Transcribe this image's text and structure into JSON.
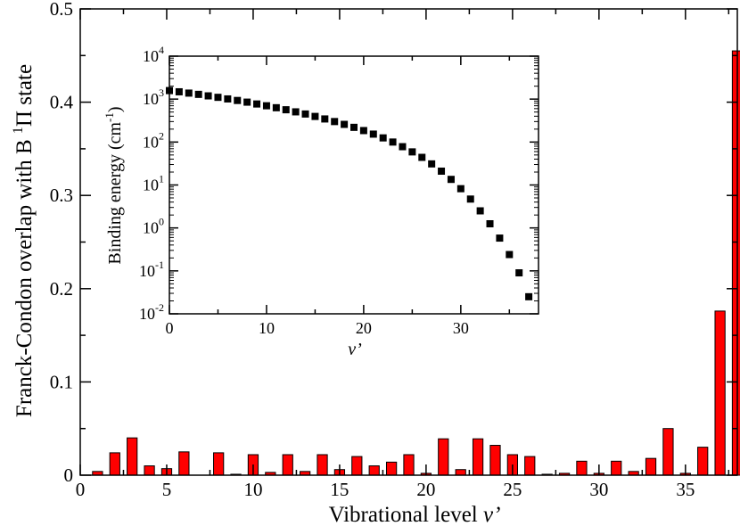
{
  "chart_data": [
    {
      "type": "bar",
      "xlabel": "Vibrational level v’",
      "ylabel": "Franck-Condon overlap with B ¹Π state",
      "xlim": [
        0,
        38
      ],
      "ylim": [
        0,
        0.5
      ],
      "xticks": [
        0,
        5,
        10,
        15,
        20,
        25,
        30,
        35
      ],
      "yticks": [
        0,
        0.1,
        0.2,
        0.3,
        0.4,
        0.5
      ],
      "bar_color": "#ff0000",
      "x": [
        0,
        1,
        2,
        3,
        4,
        5,
        6,
        7,
        8,
        9,
        10,
        11,
        12,
        13,
        14,
        15,
        16,
        17,
        18,
        19,
        20,
        21,
        22,
        23,
        24,
        25,
        26,
        27,
        28,
        29,
        30,
        31,
        32,
        33,
        34,
        35,
        36,
        37
      ],
      "values": [
        0.004,
        0.024,
        0.04,
        0.01,
        0.007,
        0.025,
        0.0,
        0.024,
        0.001,
        0.022,
        0.003,
        0.022,
        0.004,
        0.022,
        0.006,
        0.02,
        0.01,
        0.014,
        0.022,
        0.002,
        0.039,
        0.006,
        0.039,
        0.032,
        0.022,
        0.02,
        0.001,
        0.002,
        0.015,
        0.002,
        0.015,
        0.004,
        0.018,
        0.05,
        0.002,
        0.03,
        0.176,
        0.455
      ]
    },
    {
      "type": "scatter",
      "xlabel": "v’",
      "ylabel": "Binding energy (cm⁻¹)",
      "yscale": "log",
      "xlim": [
        0,
        38
      ],
      "ylim": [
        0.01,
        10000
      ],
      "xticks": [
        0,
        10,
        20,
        30
      ],
      "yticks": [
        0.01,
        0.1,
        1,
        10,
        100,
        1000,
        10000
      ],
      "marker_color": "#000000",
      "x": [
        0,
        1,
        2,
        3,
        4,
        5,
        6,
        7,
        8,
        9,
        10,
        11,
        12,
        13,
        14,
        15,
        16,
        17,
        18,
        19,
        20,
        21,
        22,
        23,
        24,
        25,
        26,
        27,
        28,
        29,
        30,
        31,
        32,
        33,
        34,
        35,
        36,
        37
      ],
      "y": [
        1580,
        1480,
        1380,
        1290,
        1190,
        1100,
        1010,
        930,
        850,
        770,
        700,
        630,
        565,
        505,
        450,
        395,
        345,
        300,
        258,
        220,
        185,
        153,
        125,
        100,
        78,
        59,
        44,
        31,
        21,
        13.5,
        8.2,
        4.7,
        2.5,
        1.25,
        0.58,
        0.24,
        0.09,
        0.025
      ]
    }
  ],
  "main_axes": {
    "x_ticks": [
      {
        "label": "0"
      },
      {
        "label": "5"
      },
      {
        "label": "10"
      },
      {
        "label": "15"
      },
      {
        "label": "20"
      },
      {
        "label": "25"
      },
      {
        "label": "30"
      },
      {
        "label": "35"
      }
    ],
    "y_ticks": [
      {
        "label": "0"
      },
      {
        "label": "0.1"
      },
      {
        "label": "0.2"
      },
      {
        "label": "0.3"
      },
      {
        "label": "0.4"
      },
      {
        "label": "0.5"
      }
    ],
    "xlabel_text": "Vibrational level ",
    "xlabel_italic": "v’",
    "ylabel_text": "Franck-Condon overlap with B ",
    "ylabel_sup": "1",
    "ylabel_end": "Π state"
  },
  "inset_axes": {
    "x_ticks": [
      {
        "label": "0"
      },
      {
        "label": "10"
      },
      {
        "label": "20"
      },
      {
        "label": "30"
      }
    ],
    "y_ticks": [
      {
        "base": "10",
        "exp": "-2"
      },
      {
        "base": "10",
        "exp": "-1"
      },
      {
        "base": "10",
        "exp": "0"
      },
      {
        "base": "10",
        "exp": "1"
      },
      {
        "base": "10",
        "exp": "2"
      },
      {
        "base": "10",
        "exp": "3"
      },
      {
        "base": "10",
        "exp": "4"
      }
    ],
    "xlabel": "v’",
    "ylabel_text": "Binding energy (cm",
    "ylabel_sup": "-1",
    "ylabel_end": ")"
  }
}
